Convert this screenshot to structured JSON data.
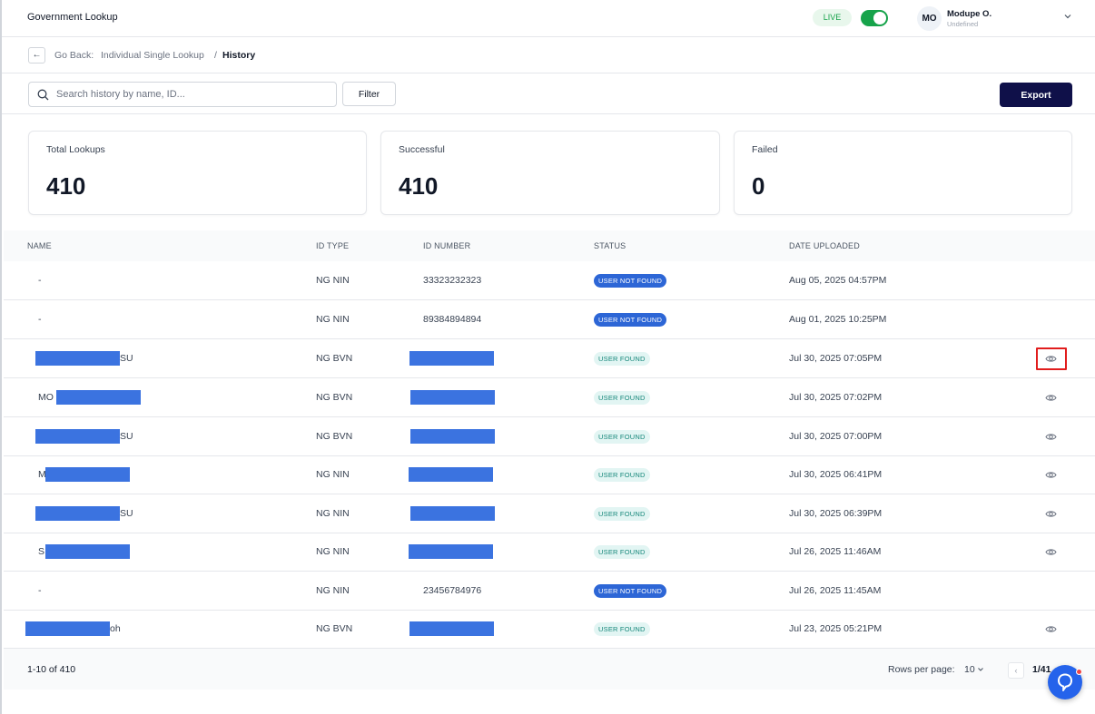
{
  "header": {
    "app_title": "Government Lookup",
    "live_label": "LIVE",
    "live_enabled": true,
    "user_initials": "MO",
    "user_name": "Modupe O.",
    "user_subtitle": "Undefined",
    "accent_green": "#16a34a"
  },
  "breadcrumb": {
    "back_icon": "arrow-left-icon",
    "back_label": "Go Back:",
    "items": [
      "Individual Single Lookup",
      "History"
    ],
    "separator": "/"
  },
  "toolbar": {
    "search_placeholder": "Search history by name, ID...",
    "search_value": "",
    "filter_label": "Filter",
    "export_label": "Export",
    "export_color": "#0f1049"
  },
  "stats": [
    {
      "label": "Total Lookups",
      "value": "410"
    },
    {
      "label": "Successful",
      "value": "410"
    },
    {
      "label": "Failed",
      "value": "0"
    }
  ],
  "table": {
    "columns": [
      "NAME",
      "ID TYPE",
      "ID NUMBER",
      "STATUS",
      "DATE UPLOADED"
    ],
    "rows": [
      {
        "name": "-",
        "id_type": "NG NIN",
        "id_number": "33323232323",
        "status": "USER NOT FOUND",
        "date": "Aug 05, 2025 04:57PM",
        "action": false
      },
      {
        "name": "-",
        "id_type": "NG NIN",
        "id_number": "89384894894",
        "status": "USER NOT FOUND",
        "date": "Aug 01, 2025 10:25PM",
        "action": false
      },
      {
        "name": "SU",
        "id_type": "NG BVN",
        "id_number": "",
        "status": "USER FOUND",
        "date": "Jul 30, 2025 07:05PM",
        "action": true,
        "highlighted": true
      },
      {
        "name": "MO",
        "id_type": "NG BVN",
        "id_number": "",
        "status": "USER FOUND",
        "date": "Jul 30, 2025 07:02PM",
        "action": true
      },
      {
        "name": "SU",
        "id_type": "NG BVN",
        "id_number": "",
        "status": "USER FOUND",
        "date": "Jul 30, 2025 07:00PM",
        "action": true
      },
      {
        "name": "M",
        "id_type": "NG NIN",
        "id_number": "",
        "status": "USER FOUND",
        "date": "Jul 30, 2025 06:41PM",
        "action": true
      },
      {
        "name": "SU",
        "id_type": "NG NIN",
        "id_number": "",
        "status": "USER FOUND",
        "date": "Jul 30, 2025 06:39PM",
        "action": true
      },
      {
        "name": "S",
        "id_type": "NG NIN",
        "id_number": "",
        "status": "USER FOUND",
        "date": "Jul 26, 2025 11:46AM",
        "action": true
      },
      {
        "name": "-",
        "id_type": "NG NIN",
        "id_number": "23456784976",
        "status": "USER NOT FOUND",
        "date": "Jul 26, 2025 11:45AM",
        "action": false
      },
      {
        "name": "oh",
        "id_type": "NG BVN",
        "id_number": "",
        "status": "USER FOUND",
        "date": "Jul 23, 2025 05:21PM",
        "action": true
      }
    ],
    "redaction_color": "#3b73e0",
    "status_colors": {
      "USER NOT FOUND": "#2d66d6",
      "USER FOUND": "#16877a"
    }
  },
  "footer": {
    "range_text": "1-10 of 410",
    "rows_per_page_label": "Rows per page:",
    "rows_per_page_value": "10",
    "page_indicator": "1/41",
    "prev_icon": "chevron-left-icon",
    "help_icon": "support-chat-icon"
  }
}
